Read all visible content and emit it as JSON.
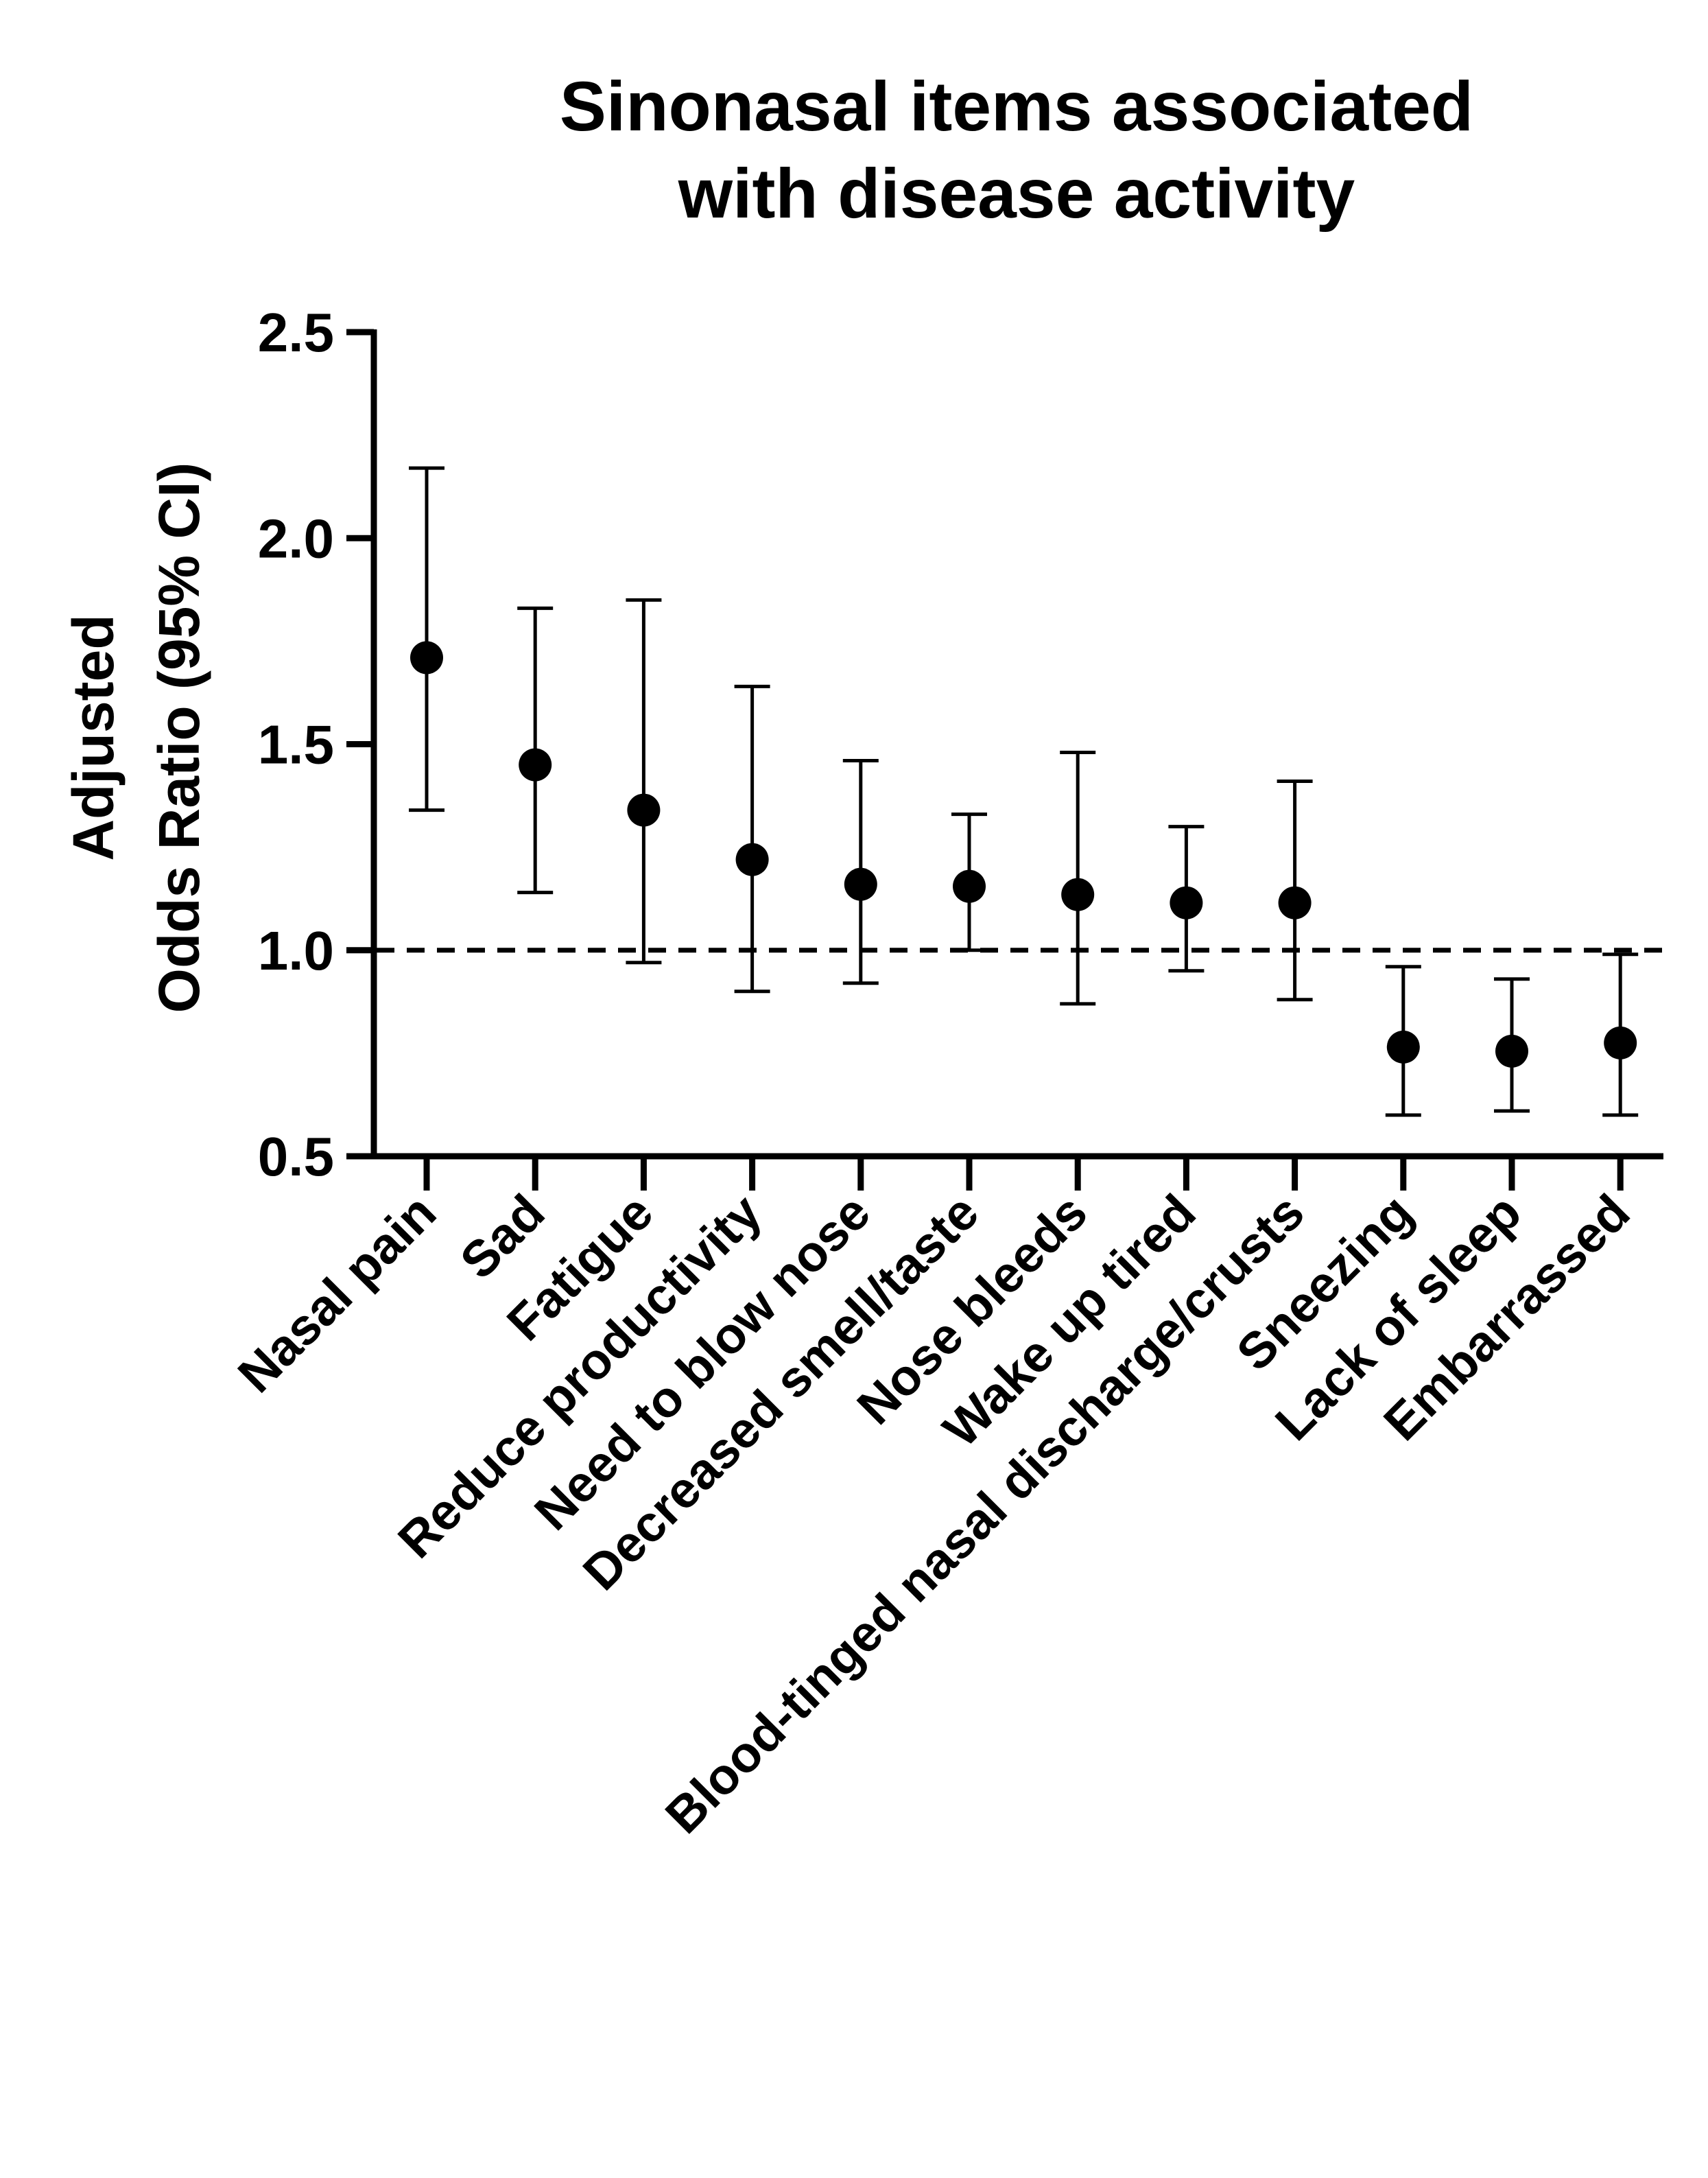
{
  "chart_data": {
    "type": "scatter",
    "title": "Sinonasal items associated with disease activity",
    "title_lines": [
      "Sinonasal items associated",
      "with disease activity"
    ],
    "xlabel": "",
    "ylabel": "Adjusted Odds Ratio (95% CI)",
    "ylabel_lines": [
      "Adjusted",
      "Odds Ratio (95% CI)"
    ],
    "ylim": [
      0.5,
      2.5
    ],
    "yticks": [
      0.5,
      1.0,
      1.5,
      2.0,
      2.5
    ],
    "ytick_labels": [
      "0.5",
      "1.0",
      "1.5",
      "2.0",
      "2.5"
    ],
    "reference_line": 1.0,
    "reference_line_style": "dashed",
    "grid": false,
    "legend": "none",
    "categories": [
      "Nasal pain",
      "Sad",
      "Fatigue",
      "Reduce productivity",
      "Need to blow nose",
      "Decreased smell/taste",
      "Nose bleeds",
      "Wake up tired",
      "Blood-tinged nasal discharge/crusts",
      "Sneezing",
      "Lack of sleep",
      "Embarrassed"
    ],
    "series": [
      {
        "estimate": [
          1.71,
          1.45,
          1.34,
          1.22,
          1.16,
          1.155,
          1.135,
          1.115,
          1.115,
          0.765,
          0.755,
          0.775
        ],
        "ci_lower": [
          1.34,
          1.14,
          0.97,
          0.9,
          0.92,
          1.0,
          0.87,
          0.95,
          0.88,
          0.6,
          0.61,
          0.6
        ],
        "ci_upper": [
          2.17,
          1.83,
          1.85,
          1.64,
          1.46,
          1.33,
          1.48,
          1.3,
          1.41,
          0.96,
          0.93,
          0.99
        ]
      }
    ],
    "colors": {
      "marker": "#000000",
      "axis": "#000000",
      "background": "#ffffff"
    }
  }
}
